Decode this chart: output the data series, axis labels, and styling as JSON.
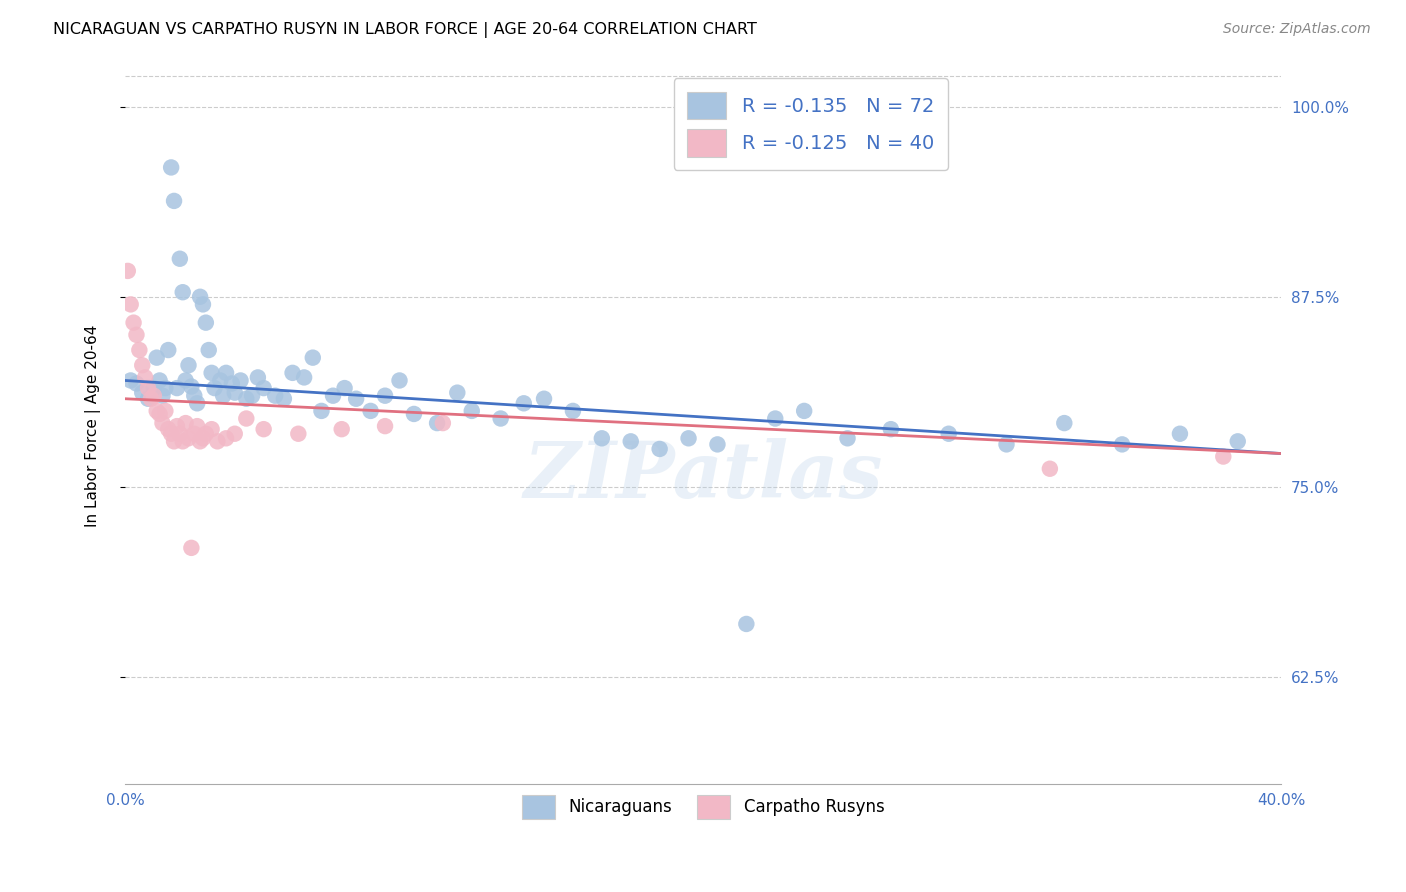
{
  "title": "NICARAGUAN VS CARPATHO RUSYN IN LABOR FORCE | AGE 20-64 CORRELATION CHART",
  "source_text": "Source: ZipAtlas.com",
  "ylabel": "In Labor Force | Age 20-64",
  "x_min": 0.0,
  "x_max": 0.4,
  "y_min": 0.555,
  "y_max": 1.025,
  "x_ticks": [
    0.0,
    0.05,
    0.1,
    0.15,
    0.2,
    0.25,
    0.3,
    0.35,
    0.4
  ],
  "x_tick_labels": [
    "0.0%",
    "",
    "",
    "",
    "",
    "",
    "",
    "",
    "40.0%"
  ],
  "y_ticks": [
    0.625,
    0.75,
    0.875,
    1.0
  ],
  "y_tick_labels": [
    "62.5%",
    "75.0%",
    "87.5%",
    "100.0%"
  ],
  "watermark": "ZIPatlas",
  "blue_scatter_color": "#a8c4e0",
  "pink_scatter_color": "#f2b8c6",
  "blue_line_color": "#4472c4",
  "pink_line_color": "#e07080",
  "blue_R": -0.135,
  "pink_R": -0.125,
  "blue_N": 72,
  "pink_N": 40,
  "blue_x": [
    0.002,
    0.004,
    0.006,
    0.008,
    0.01,
    0.011,
    0.012,
    0.013,
    0.014,
    0.015,
    0.016,
    0.017,
    0.018,
    0.019,
    0.02,
    0.021,
    0.022,
    0.023,
    0.024,
    0.025,
    0.026,
    0.027,
    0.028,
    0.029,
    0.03,
    0.031,
    0.033,
    0.034,
    0.035,
    0.037,
    0.038,
    0.04,
    0.042,
    0.044,
    0.046,
    0.048,
    0.052,
    0.055,
    0.058,
    0.062,
    0.065,
    0.068,
    0.072,
    0.076,
    0.08,
    0.085,
    0.09,
    0.095,
    0.1,
    0.108,
    0.115,
    0.12,
    0.13,
    0.138,
    0.145,
    0.155,
    0.165,
    0.175,
    0.185,
    0.195,
    0.205,
    0.215,
    0.225,
    0.235,
    0.25,
    0.265,
    0.285,
    0.305,
    0.325,
    0.345,
    0.365,
    0.385
  ],
  "blue_y": [
    0.82,
    0.818,
    0.812,
    0.808,
    0.815,
    0.835,
    0.82,
    0.81,
    0.815,
    0.84,
    0.96,
    0.938,
    0.815,
    0.9,
    0.878,
    0.82,
    0.83,
    0.816,
    0.81,
    0.805,
    0.875,
    0.87,
    0.858,
    0.84,
    0.825,
    0.815,
    0.82,
    0.81,
    0.825,
    0.818,
    0.812,
    0.82,
    0.808,
    0.81,
    0.822,
    0.815,
    0.81,
    0.808,
    0.825,
    0.822,
    0.835,
    0.8,
    0.81,
    0.815,
    0.808,
    0.8,
    0.81,
    0.82,
    0.798,
    0.792,
    0.812,
    0.8,
    0.795,
    0.805,
    0.808,
    0.8,
    0.782,
    0.78,
    0.775,
    0.782,
    0.778,
    0.66,
    0.795,
    0.8,
    0.782,
    0.788,
    0.785,
    0.778,
    0.792,
    0.778,
    0.785,
    0.78
  ],
  "pink_x": [
    0.001,
    0.002,
    0.003,
    0.004,
    0.005,
    0.006,
    0.007,
    0.008,
    0.009,
    0.01,
    0.011,
    0.012,
    0.013,
    0.014,
    0.015,
    0.016,
    0.017,
    0.018,
    0.019,
    0.02,
    0.021,
    0.022,
    0.023,
    0.024,
    0.025,
    0.026,
    0.027,
    0.028,
    0.03,
    0.032,
    0.035,
    0.038,
    0.042,
    0.048,
    0.06,
    0.075,
    0.09,
    0.11,
    0.32,
    0.38
  ],
  "pink_y": [
    0.892,
    0.87,
    0.858,
    0.85,
    0.84,
    0.83,
    0.822,
    0.815,
    0.808,
    0.81,
    0.8,
    0.798,
    0.792,
    0.8,
    0.788,
    0.785,
    0.78,
    0.79,
    0.785,
    0.78,
    0.792,
    0.782,
    0.71,
    0.785,
    0.79,
    0.78,
    0.782,
    0.785,
    0.788,
    0.78,
    0.782,
    0.785,
    0.795,
    0.788,
    0.785,
    0.788,
    0.79,
    0.792,
    0.762,
    0.77
  ],
  "blue_line_x0": 0.0,
  "blue_line_y0": 0.82,
  "blue_line_x1": 0.4,
  "blue_line_y1": 0.772,
  "pink_line_x0": 0.0,
  "pink_line_y0": 0.808,
  "pink_line_x1": 0.4,
  "pink_line_y1": 0.772
}
